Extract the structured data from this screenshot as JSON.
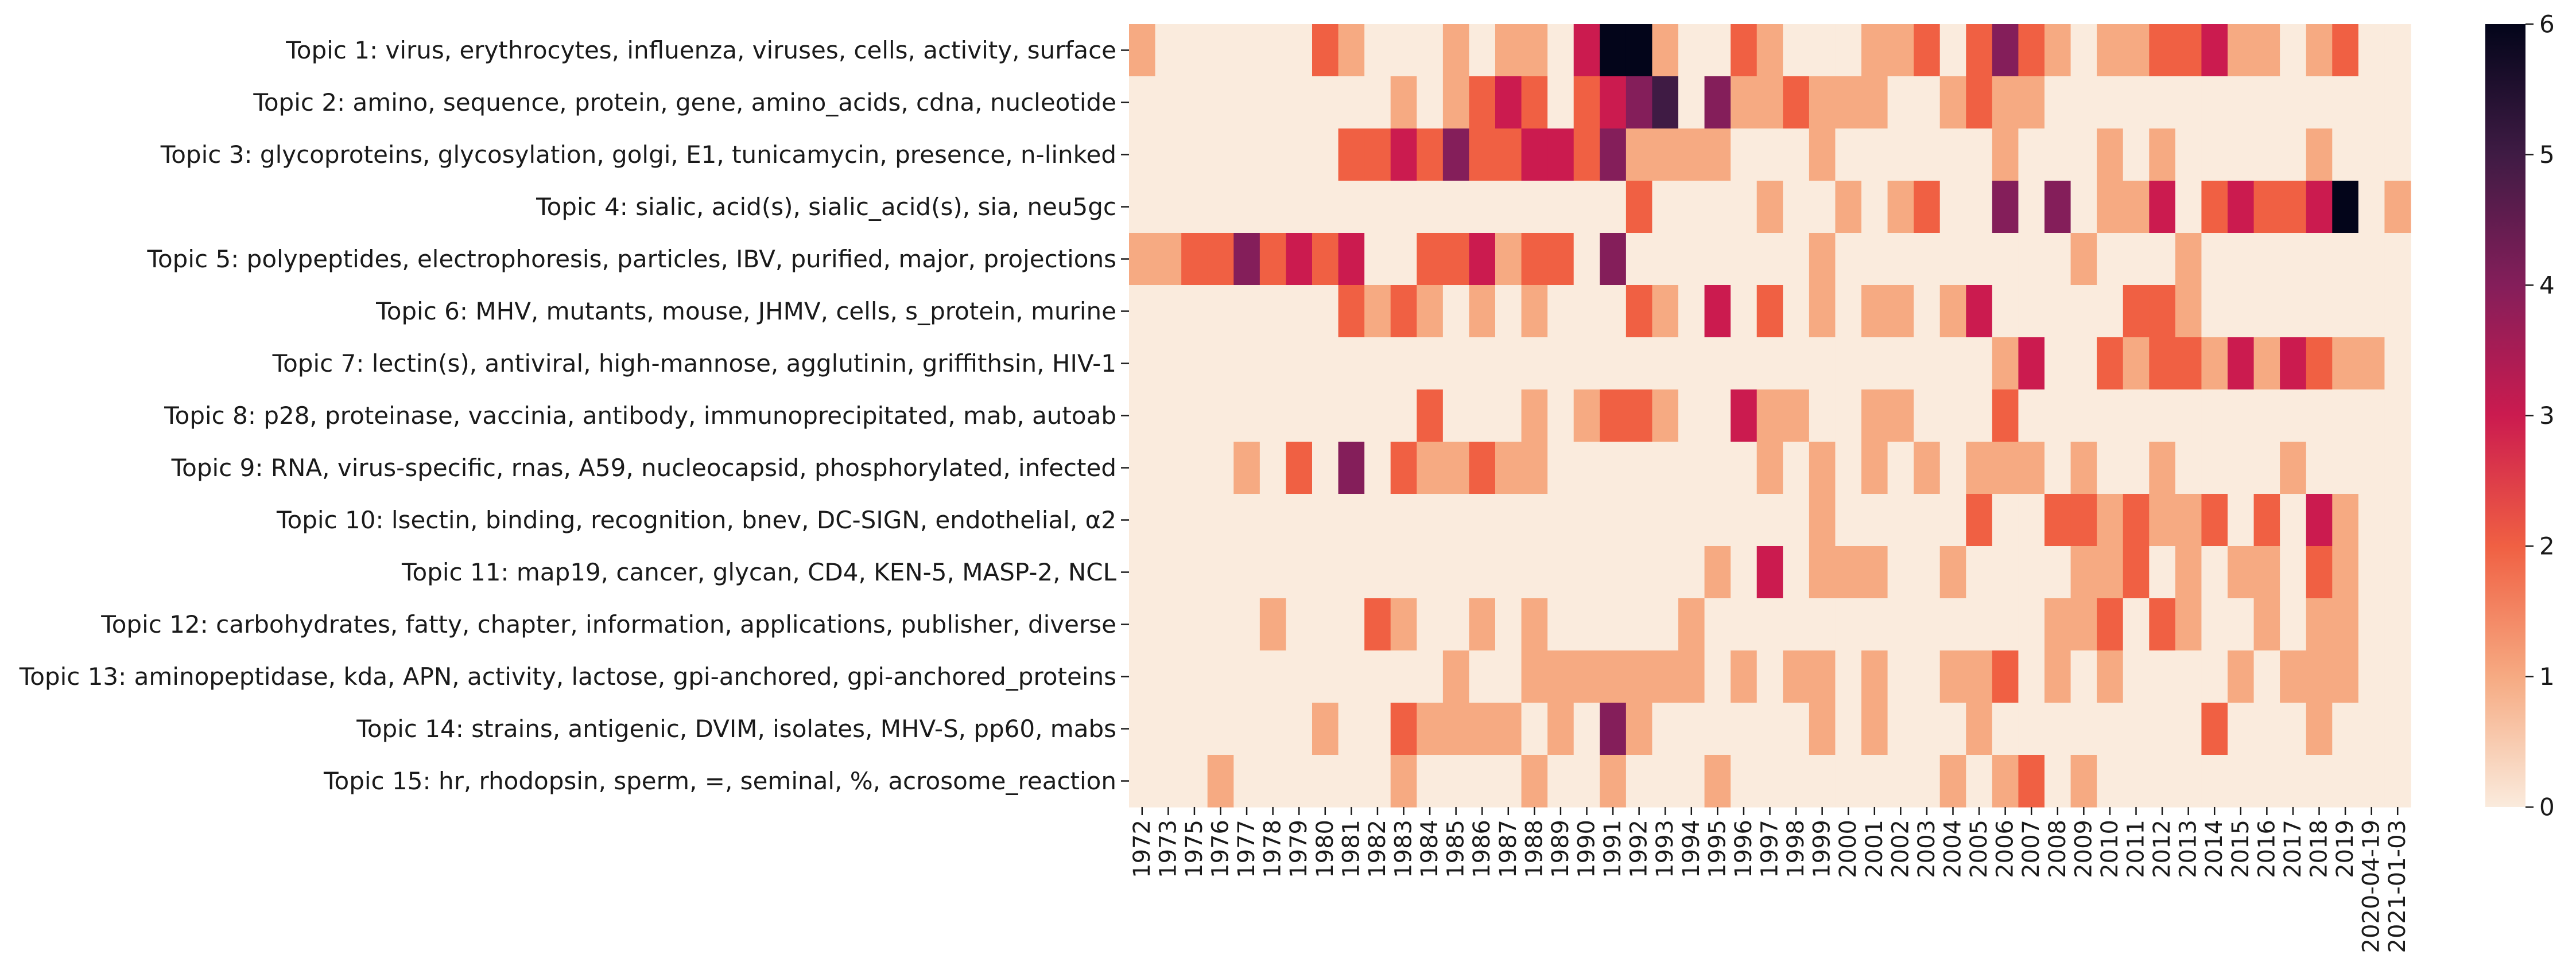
{
  "chart_data": {
    "type": "heatmap",
    "title": "",
    "xlabel": "",
    "ylabel": "",
    "x": [
      "1972",
      "1973",
      "1975",
      "1976",
      "1977",
      "1978",
      "1979",
      "1980",
      "1981",
      "1982",
      "1983",
      "1984",
      "1985",
      "1986",
      "1987",
      "1988",
      "1989",
      "1990",
      "1991",
      "1992",
      "1993",
      "1994",
      "1995",
      "1996",
      "1997",
      "1998",
      "1999",
      "2000",
      "2001",
      "2002",
      "2003",
      "2004",
      "2005",
      "2006",
      "2007",
      "2008",
      "2009",
      "2010",
      "2011",
      "2012",
      "2013",
      "2014",
      "2015",
      "2016",
      "2017",
      "2018",
      "2019",
      "2020-04-19",
      "2021-01-03"
    ],
    "y": [
      "Topic 1: virus, erythrocytes, influenza, viruses, cells, activity, surface",
      "Topic 2: amino, sequence, protein, gene, amino_acids, cdna, nucleotide",
      "Topic 3: glycoproteins, glycosylation, golgi, E1, tunicamycin, presence, n-linked",
      "Topic 4: sialic, acid(s), sialic_acid(s), sia, neu5gc",
      "Topic 5: polypeptides, electrophoresis, particles, IBV, purified, major, projections",
      "Topic 6: MHV, mutants, mouse, JHMV, cells, s_protein, murine",
      "Topic 7: lectin(s), antiviral, high-mannose, agglutinin, griffithsin, HIV-1",
      "Topic 8: p28, proteinase, vaccinia, antibody, immunoprecipitated, mab, autoab",
      "Topic 9: RNA, virus-specific, rnas, A59, nucleocapsid, phosphorylated, infected",
      "Topic 10: lsectin, binding, recognition, bnev, DC-SIGN, endothelial, α2",
      "Topic 11: map19, cancer, glycan, CD4, KEN-5, MASP-2, NCL",
      "Topic 12: carbohydrates, fatty, chapter, information, applications, publisher, diverse",
      "Topic 13: aminopeptidase, kda, APN, activity, lactose, gpi-anchored, gpi-anchored_proteins",
      "Topic 14: strains, antigenic, DVIM, isolates, MHV-S, pp60, mabs",
      "Topic 15: hr, rhodopsin, sperm, =, seminal, %, acrosome_reaction"
    ],
    "values": [
      [
        1,
        0,
        0,
        0,
        0,
        0,
        0,
        2,
        1,
        0,
        0,
        0,
        1,
        0,
        1,
        1,
        0,
        3,
        6,
        6,
        1,
        0,
        0,
        2,
        1,
        0,
        0,
        0,
        1,
        1,
        2,
        0,
        2,
        4,
        2,
        1,
        0,
        1,
        1,
        2,
        2,
        3,
        1,
        1,
        0,
        1,
        2,
        0,
        0
      ],
      [
        0,
        0,
        0,
        0,
        0,
        0,
        0,
        0,
        0,
        0,
        1,
        0,
        1,
        2,
        3,
        2,
        0,
        2,
        3,
        4,
        5,
        0,
        4,
        1,
        1,
        2,
        1,
        1,
        1,
        0,
        0,
        1,
        2,
        1,
        1,
        0,
        0,
        0,
        0,
        0,
        0,
        0,
        0,
        0,
        0,
        0,
        0,
        0,
        0
      ],
      [
        0,
        0,
        0,
        0,
        0,
        0,
        0,
        0,
        2,
        2,
        3,
        2,
        4,
        2,
        2,
        3,
        3,
        2,
        4,
        1,
        1,
        1,
        1,
        0,
        0,
        0,
        1,
        0,
        0,
        0,
        0,
        0,
        0,
        1,
        0,
        0,
        0,
        1,
        0,
        1,
        0,
        0,
        0,
        0,
        0,
        1,
        0,
        0,
        0
      ],
      [
        0,
        0,
        0,
        0,
        0,
        0,
        0,
        0,
        0,
        0,
        0,
        0,
        0,
        0,
        0,
        0,
        0,
        0,
        0,
        2,
        0,
        0,
        0,
        0,
        1,
        0,
        0,
        1,
        0,
        1,
        2,
        0,
        0,
        4,
        0,
        4,
        0,
        1,
        1,
        3,
        0,
        2,
        3,
        2,
        2,
        3,
        6,
        0,
        1
      ],
      [
        1,
        1,
        2,
        2,
        4,
        2,
        3,
        2,
        3,
        0,
        0,
        2,
        2,
        3,
        1,
        2,
        2,
        0,
        4,
        0,
        0,
        0,
        0,
        0,
        0,
        0,
        1,
        0,
        0,
        0,
        0,
        0,
        0,
        0,
        0,
        0,
        1,
        0,
        0,
        0,
        1,
        0,
        0,
        0,
        0,
        0,
        0,
        0,
        0
      ],
      [
        0,
        0,
        0,
        0,
        0,
        0,
        0,
        0,
        2,
        1,
        2,
        1,
        0,
        1,
        0,
        1,
        0,
        0,
        0,
        2,
        1,
        0,
        3,
        0,
        2,
        0,
        1,
        0,
        1,
        1,
        0,
        1,
        3,
        0,
        0,
        0,
        0,
        0,
        2,
        2,
        1,
        0,
        0,
        0,
        0,
        0,
        0,
        0,
        0
      ],
      [
        0,
        0,
        0,
        0,
        0,
        0,
        0,
        0,
        0,
        0,
        0,
        0,
        0,
        0,
        0,
        0,
        0,
        0,
        0,
        0,
        0,
        0,
        0,
        0,
        0,
        0,
        0,
        0,
        0,
        0,
        0,
        0,
        0,
        1,
        3,
        0,
        0,
        2,
        1,
        2,
        2,
        1,
        3,
        1,
        3,
        2,
        1,
        1,
        0
      ],
      [
        0,
        0,
        0,
        0,
        0,
        0,
        0,
        0,
        0,
        0,
        0,
        2,
        0,
        0,
        0,
        1,
        0,
        1,
        2,
        2,
        1,
        0,
        0,
        3,
        1,
        1,
        0,
        0,
        1,
        1,
        0,
        0,
        0,
        2,
        0,
        0,
        0,
        0,
        0,
        0,
        0,
        0,
        0,
        0,
        0,
        0,
        0,
        0,
        0
      ],
      [
        0,
        0,
        0,
        0,
        1,
        0,
        2,
        0,
        4,
        0,
        2,
        1,
        1,
        2,
        1,
        1,
        0,
        0,
        0,
        0,
        0,
        0,
        0,
        0,
        1,
        0,
        1,
        0,
        1,
        0,
        1,
        0,
        1,
        1,
        1,
        0,
        1,
        0,
        0,
        1,
        0,
        0,
        0,
        0,
        1,
        0,
        0,
        0,
        0
      ],
      [
        0,
        0,
        0,
        0,
        0,
        0,
        0,
        0,
        0,
        0,
        0,
        0,
        0,
        0,
        0,
        0,
        0,
        0,
        0,
        0,
        0,
        0,
        0,
        0,
        0,
        0,
        1,
        0,
        0,
        0,
        0,
        0,
        2,
        0,
        0,
        2,
        2,
        1,
        2,
        1,
        1,
        2,
        0,
        2,
        0,
        3,
        1,
        0,
        0
      ],
      [
        0,
        0,
        0,
        0,
        0,
        0,
        0,
        0,
        0,
        0,
        0,
        0,
        0,
        0,
        0,
        0,
        0,
        0,
        0,
        0,
        0,
        0,
        1,
        0,
        3,
        0,
        1,
        1,
        1,
        0,
        0,
        1,
        0,
        0,
        0,
        0,
        1,
        1,
        2,
        0,
        1,
        0,
        1,
        1,
        0,
        2,
        1,
        0,
        0
      ],
      [
        0,
        0,
        0,
        0,
        0,
        1,
        0,
        0,
        0,
        2,
        1,
        0,
        0,
        1,
        0,
        1,
        0,
        0,
        0,
        0,
        0,
        1,
        0,
        0,
        0,
        0,
        0,
        0,
        0,
        0,
        0,
        0,
        0,
        0,
        0,
        1,
        1,
        2,
        0,
        2,
        1,
        0,
        0,
        1,
        0,
        1,
        1,
        0,
        0
      ],
      [
        0,
        0,
        0,
        0,
        0,
        0,
        0,
        0,
        0,
        0,
        0,
        0,
        1,
        0,
        0,
        1,
        1,
        1,
        1,
        1,
        1,
        1,
        0,
        1,
        0,
        1,
        1,
        0,
        1,
        0,
        0,
        1,
        1,
        2,
        0,
        1,
        0,
        1,
        0,
        0,
        0,
        0,
        1,
        0,
        1,
        1,
        1,
        0,
        0
      ],
      [
        0,
        0,
        0,
        0,
        0,
        0,
        0,
        1,
        0,
        0,
        2,
        1,
        1,
        1,
        1,
        0,
        1,
        0,
        4,
        1,
        0,
        0,
        0,
        0,
        0,
        0,
        1,
        0,
        1,
        0,
        0,
        0,
        1,
        0,
        0,
        0,
        0,
        0,
        0,
        0,
        0,
        2,
        0,
        0,
        0,
        1,
        0,
        0,
        0
      ],
      [
        0,
        0,
        0,
        1,
        0,
        0,
        0,
        0,
        0,
        0,
        1,
        0,
        0,
        0,
        0,
        1,
        0,
        0,
        1,
        0,
        0,
        0,
        1,
        0,
        0,
        0,
        0,
        0,
        0,
        0,
        0,
        1,
        0,
        1,
        2,
        0,
        1,
        0,
        0,
        0,
        0,
        0,
        0,
        0,
        0,
        0,
        0,
        0,
        0
      ]
    ],
    "zlim": [
      0,
      6
    ],
    "colorbar_ticks": [
      "0",
      "1",
      "2",
      "3",
      "4",
      "5",
      "6"
    ],
    "colormap": "rocket_r",
    "colors": [
      "#faebdd",
      "#f6aa82",
      "#f06043",
      "#cb1b4f",
      "#841e5a",
      "#3f1b44",
      "#03051a"
    ],
    "grid": false,
    "legend": "colorbar-right"
  }
}
